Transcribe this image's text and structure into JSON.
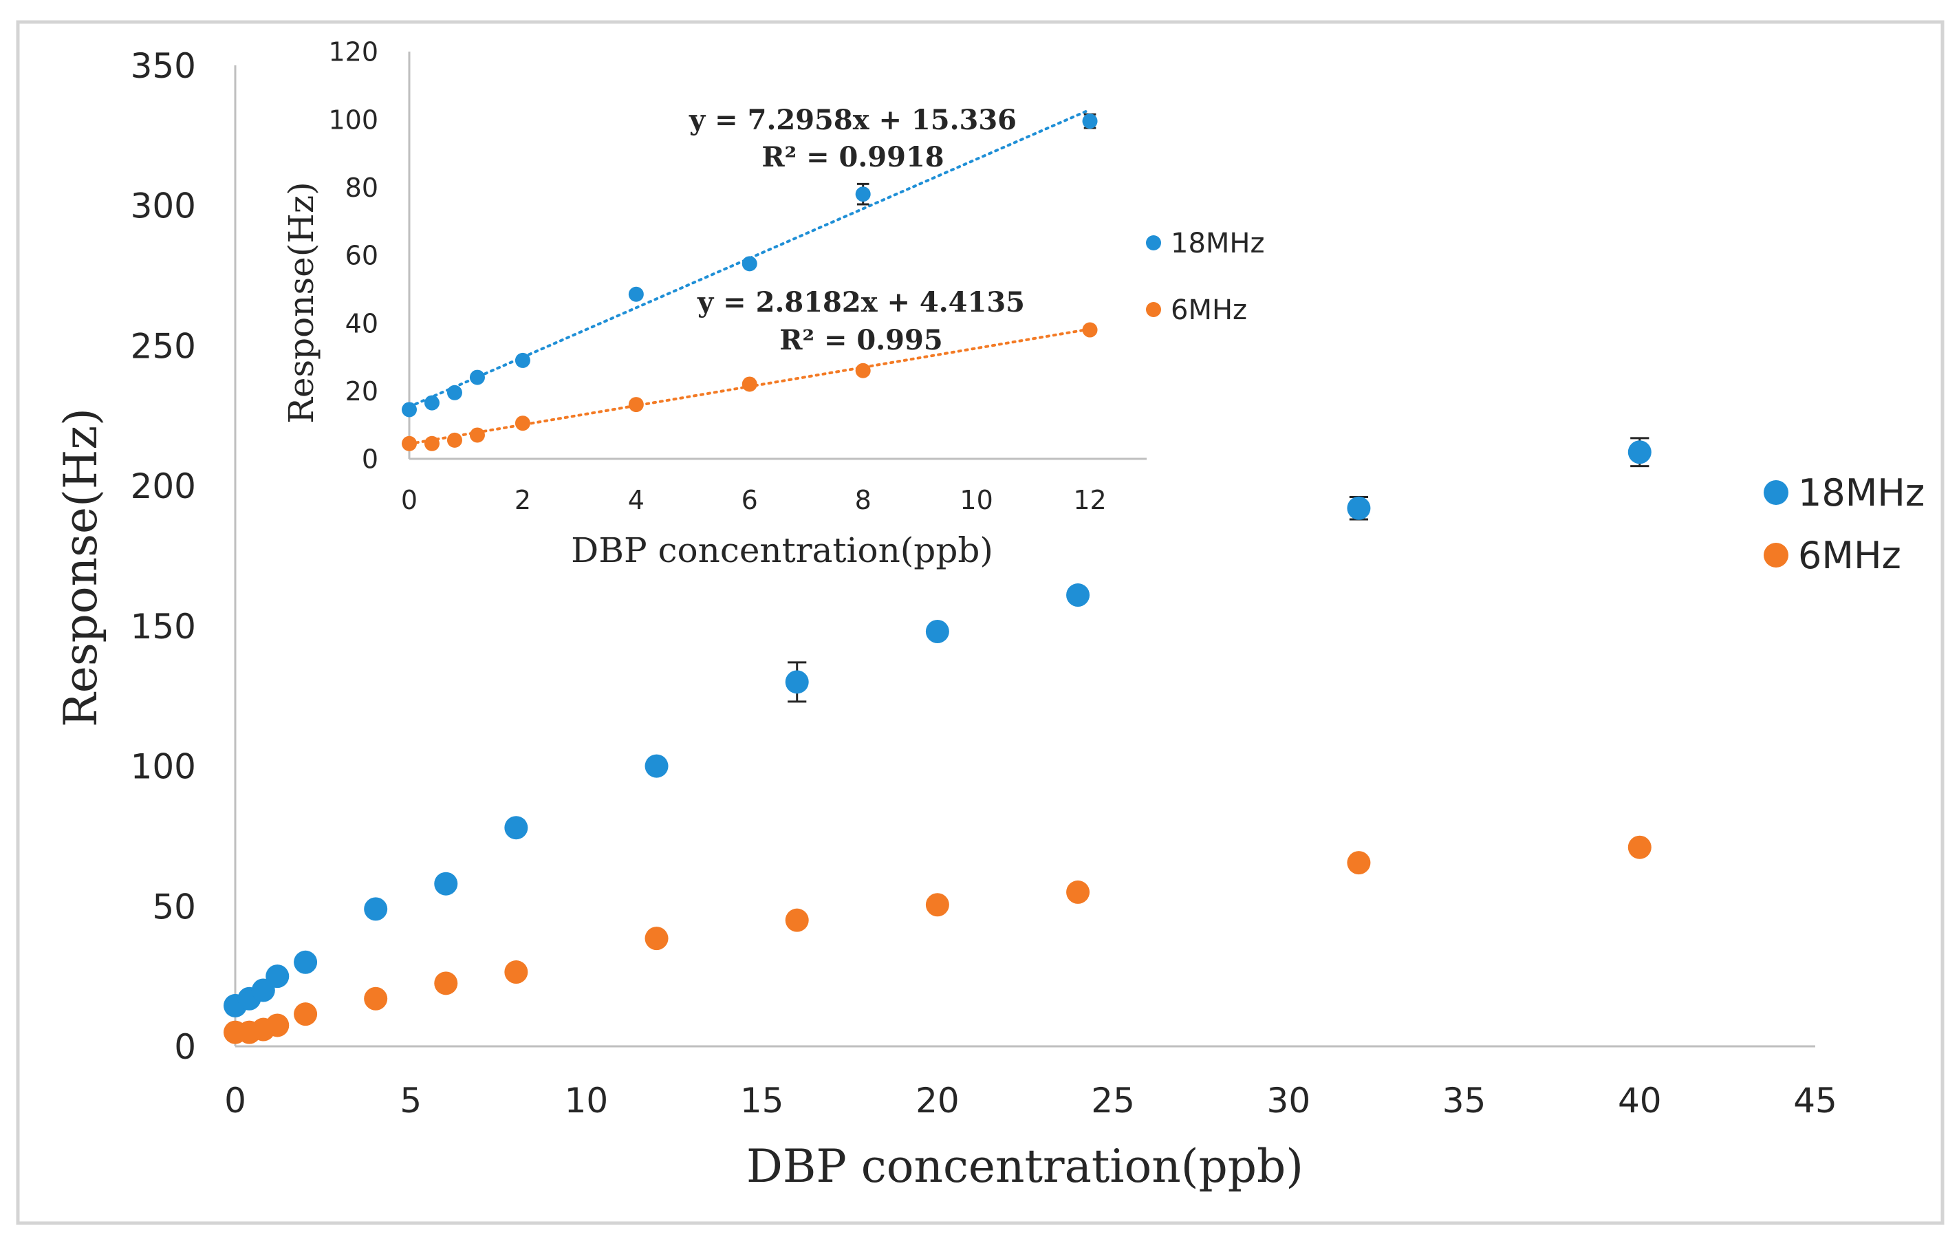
{
  "chart_data": [
    {
      "type": "scatter",
      "name": "main",
      "xlabel": "DBP concentration(ppb)",
      "ylabel": "Response(Hz)",
      "xlim": [
        0,
        45
      ],
      "ylim": [
        0,
        350
      ],
      "x_ticks": [
        "0",
        "5",
        "10",
        "15",
        "20",
        "25",
        "30",
        "35",
        "40",
        "45"
      ],
      "y_ticks": [
        "0",
        "50",
        "100",
        "150",
        "200",
        "250",
        "300",
        "350"
      ],
      "legend_position": "right",
      "series": [
        {
          "name": "18MHz",
          "color": "#1f8fd6",
          "x": [
            0,
            0.4,
            0.8,
            1.2,
            2,
            4,
            6,
            8,
            12,
            16,
            20,
            24,
            32,
            40
          ],
          "y": [
            14.5,
            17,
            20,
            25,
            30,
            49,
            58,
            78,
            100,
            130,
            148,
            161,
            192,
            212
          ],
          "err": [
            0,
            0,
            0,
            0,
            0,
            0,
            0,
            1,
            0,
            7,
            0,
            0,
            4,
            5
          ]
        },
        {
          "name": "6MHz",
          "color": "#f37a24",
          "x": [
            0,
            0.4,
            0.8,
            1.2,
            2,
            4,
            6,
            8,
            12,
            16,
            20,
            24,
            32,
            40
          ],
          "y": [
            5,
            5,
            6,
            7.5,
            11.5,
            17,
            22.5,
            26.5,
            38.5,
            45,
            50.5,
            55,
            65.5,
            71
          ],
          "err": [
            0,
            0,
            0,
            0,
            0,
            0,
            0,
            0,
            0,
            0,
            0,
            0,
            0,
            0
          ]
        }
      ]
    },
    {
      "type": "scatter",
      "name": "inset",
      "xlabel": "DBP concentration(ppb)",
      "ylabel": "Response(Hz)",
      "xlim": [
        0,
        13
      ],
      "ylim": [
        0,
        120
      ],
      "x_ticks": [
        "0",
        "2",
        "4",
        "6",
        "8",
        "10",
        "12"
      ],
      "y_ticks": [
        "0",
        "20",
        "40",
        "60",
        "80",
        "100",
        "120"
      ],
      "legend_position": "right",
      "series": [
        {
          "name": "18MHz",
          "color": "#1f8fd6",
          "x": [
            0,
            0.4,
            0.8,
            1.2,
            2,
            4,
            6,
            8,
            12
          ],
          "y": [
            14.5,
            16.5,
            19.5,
            24,
            29,
            48.5,
            57.5,
            78,
            99.5
          ],
          "err": [
            0,
            0,
            0,
            0,
            0,
            0,
            0,
            3,
            2
          ],
          "trendline": {
            "slope": 7.2958,
            "intercept": 15.336,
            "equation": "y = 7.2958x + 15.336",
            "r2": "R² = 0.9918"
          }
        },
        {
          "name": "6MHz",
          "color": "#f37a24",
          "x": [
            0,
            0.4,
            0.8,
            1.2,
            2,
            4,
            6,
            8,
            12
          ],
          "y": [
            4.5,
            4.5,
            5.5,
            7,
            10.5,
            16,
            22,
            26,
            38
          ],
          "err": [
            0,
            0,
            0,
            0,
            0,
            0,
            0,
            0,
            0
          ],
          "trendline": {
            "slope": 2.8182,
            "intercept": 4.4135,
            "equation": "y = 2.8182x + 4.4135",
            "r2": "R² = 0.995"
          }
        }
      ]
    }
  ]
}
